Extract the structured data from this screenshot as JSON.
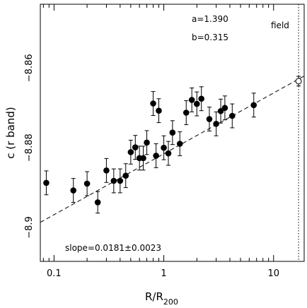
{
  "chart_data": {
    "type": "scatter",
    "xlabel_main": "R/R",
    "xlabel_sub": "200",
    "ylabel": "c (r band)",
    "x_scale": "log",
    "y_axis_inverted": true,
    "xlim": [
      0.075,
      19
    ],
    "ylim": [
      -8.844,
      -8.9085
    ],
    "x_ticks": [
      {
        "value": 0.1,
        "label": "0.1"
      },
      {
        "value": 1,
        "label": "1"
      },
      {
        "value": 10,
        "label": "10"
      }
    ],
    "y_ticks": [
      {
        "value": -8.86,
        "label": "−8.86"
      },
      {
        "value": -8.88,
        "label": "−8.88"
      },
      {
        "value": -8.9,
        "label": "−8.9"
      }
    ],
    "annotations": {
      "a": "a=1.390",
      "b": "b=0.315",
      "slope": "slope=0.0181±0.0023",
      "field": "field"
    },
    "field_x": 16.9,
    "field_point": {
      "x": 16.9,
      "y": -8.8633,
      "err": 0.0012
    },
    "fit_line": {
      "x0": 0.075,
      "y0": -8.8987,
      "x1": 19,
      "y1": -8.862
    },
    "points": [
      {
        "x": 0.085,
        "y": -8.8888,
        "err": 0.003
      },
      {
        "x": 0.15,
        "y": -8.8907,
        "err": 0.003
      },
      {
        "x": 0.2,
        "y": -8.889,
        "err": 0.003
      },
      {
        "x": 0.25,
        "y": -8.8937,
        "err": 0.0027
      },
      {
        "x": 0.3,
        "y": -8.8857,
        "err": 0.003
      },
      {
        "x": 0.35,
        "y": -8.8883,
        "err": 0.003
      },
      {
        "x": 0.4,
        "y": -8.8883,
        "err": 0.003
      },
      {
        "x": 0.45,
        "y": -8.887,
        "err": 0.003
      },
      {
        "x": 0.5,
        "y": -8.8811,
        "err": 0.003
      },
      {
        "x": 0.55,
        "y": -8.8799,
        "err": 0.003
      },
      {
        "x": 0.6,
        "y": -8.8826,
        "err": 0.003
      },
      {
        "x": 0.65,
        "y": -8.8826,
        "err": 0.003
      },
      {
        "x": 0.7,
        "y": -8.8787,
        "err": 0.003
      },
      {
        "x": 0.8,
        "y": -8.8689,
        "err": 0.003
      },
      {
        "x": 0.85,
        "y": -8.882,
        "err": 0.003
      },
      {
        "x": 0.9,
        "y": -8.8707,
        "err": 0.003
      },
      {
        "x": 1.0,
        "y": -8.88,
        "err": 0.003
      },
      {
        "x": 1.1,
        "y": -8.8814,
        "err": 0.003
      },
      {
        "x": 1.2,
        "y": -8.8762,
        "err": 0.003
      },
      {
        "x": 1.4,
        "y": -8.879,
        "err": 0.003
      },
      {
        "x": 1.6,
        "y": -8.8712,
        "err": 0.003
      },
      {
        "x": 1.8,
        "y": -8.868,
        "err": 0.003
      },
      {
        "x": 2.0,
        "y": -8.869,
        "err": 0.003
      },
      {
        "x": 2.2,
        "y": -8.8677,
        "err": 0.003
      },
      {
        "x": 2.6,
        "y": -8.8728,
        "err": 0.003
      },
      {
        "x": 3.0,
        "y": -8.874,
        "err": 0.003
      },
      {
        "x": 3.3,
        "y": -8.8708,
        "err": 0.003
      },
      {
        "x": 3.6,
        "y": -8.87,
        "err": 0.003
      },
      {
        "x": 4.2,
        "y": -8.872,
        "err": 0.003
      },
      {
        "x": 6.6,
        "y": -8.8693,
        "err": 0.003
      }
    ]
  }
}
